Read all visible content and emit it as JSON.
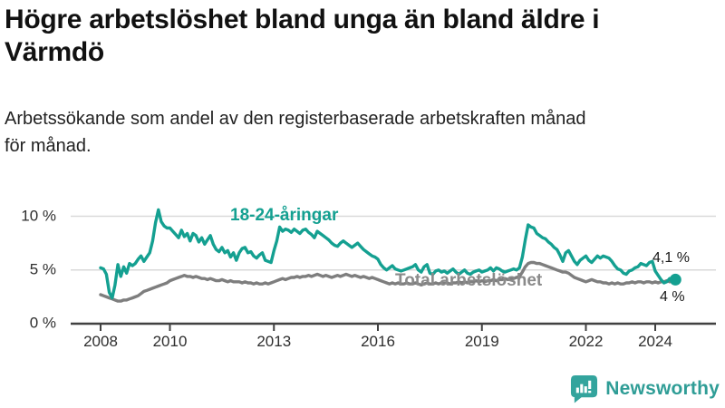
{
  "header": {
    "title_line1": "Högre arbetslöshet bland unga än bland äldre i",
    "title_line2": "Värmdö",
    "subtitle_line1": "Arbetssökande som andel av den registerbaserade arbetskraften månad",
    "subtitle_line2": "för månad."
  },
  "colors": {
    "grid": "#D9D9D9",
    "axis": "#414141",
    "youth_line": "#14A091",
    "total_line": "#7E7E7E",
    "brand": "#2F9D96"
  },
  "chart_data": {
    "type": "line",
    "title": "Högre arbetslöshet bland unga än bland äldre i Värmdö",
    "subtitle": "Arbetssökande som andel av den registerbaserade arbetskraften månad för månad.",
    "xlabel": "",
    "ylabel": "",
    "x_unit": "month",
    "x_start": "2008-01",
    "x_end": "2024-08",
    "ylim": [
      0,
      11.5
    ],
    "grid": true,
    "legend_position": "inline-annotations",
    "x_tick_labels": [
      "2008",
      "2010",
      "2013",
      "2016",
      "2019",
      "2022",
      "2024"
    ],
    "x_tick_years": [
      2008,
      2010,
      2013,
      2016,
      2019,
      2022,
      2024
    ],
    "y_tick_labels": [
      "0 %",
      "5 %",
      "10 %"
    ],
    "y_tick_values": [
      0,
      5,
      10
    ],
    "end_labels": [
      {
        "text": "4,1 %",
        "series": "18-24-åringar"
      },
      {
        "text": "4 %",
        "series": "Total arbetslöshet"
      }
    ],
    "series": [
      {
        "name": "18-24-åringar",
        "color": "#14A091",
        "end_value": 4.1,
        "values": [
          5.2,
          5.1,
          4.6,
          2.9,
          2.4,
          3.6,
          5.5,
          4.4,
          5.3,
          4.7,
          5.6,
          5.4,
          5.6,
          6.0,
          6.3,
          5.8,
          6.2,
          6.6,
          7.7,
          9.4,
          10.6,
          9.5,
          9.1,
          8.9,
          8.9,
          8.6,
          8.3,
          8.0,
          8.7,
          8.1,
          8.4,
          7.7,
          8.4,
          8.2,
          7.6,
          8.0,
          7.4,
          7.8,
          8.2,
          7.4,
          6.9,
          6.7,
          7.1,
          6.6,
          6.8,
          6.2,
          6.6,
          5.9,
          6.6,
          7.0,
          7.1,
          6.6,
          6.7,
          6.3,
          6.1,
          6.4,
          6.6,
          5.9,
          5.8,
          5.7,
          6.8,
          7.7,
          9.0,
          8.6,
          8.8,
          8.7,
          8.5,
          8.8,
          8.6,
          8.4,
          8.7,
          8.8,
          8.5,
          8.3,
          8.0,
          8.6,
          8.4,
          8.2,
          8.0,
          7.8,
          7.5,
          7.3,
          7.2,
          7.5,
          7.7,
          7.5,
          7.3,
          7.1,
          7.3,
          7.5,
          7.2,
          6.9,
          6.7,
          6.5,
          6.3,
          6.2,
          6.0,
          5.5,
          5.2,
          5.0,
          5.2,
          5.4,
          5.1,
          5.0,
          4.9,
          5.0,
          5.1,
          5.2,
          5.3,
          5.5,
          5.0,
          4.8,
          5.3,
          5.5,
          4.7,
          4.6,
          4.9,
          5.0,
          4.8,
          4.9,
          4.7,
          4.9,
          5.1,
          4.8,
          4.6,
          4.8,
          5.0,
          4.7,
          4.6,
          4.8,
          4.9,
          5.0,
          4.8,
          4.9,
          5.0,
          5.2,
          4.9,
          5.2,
          5.1,
          4.9,
          4.8,
          4.9,
          5.0,
          5.1,
          5.0,
          5.2,
          6.2,
          7.8,
          9.2,
          9.0,
          8.9,
          8.4,
          8.2,
          8.0,
          7.9,
          7.6,
          7.4,
          7.1,
          6.9,
          6.4,
          5.8,
          6.6,
          6.8,
          6.3,
          5.8,
          5.5,
          5.9,
          6.1,
          6.3,
          5.9,
          5.7,
          6.0,
          6.3,
          6.1,
          6.3,
          6.2,
          6.1,
          5.8,
          5.4,
          5.1,
          5.0,
          4.7,
          4.6,
          4.9,
          5.0,
          5.2,
          5.3,
          5.6,
          5.5,
          5.4,
          5.7,
          5.8,
          4.9,
          4.5,
          4.1,
          3.8,
          3.9,
          4.2,
          4.2,
          4.1
        ]
      },
      {
        "name": "Total arbetslöshet",
        "color": "#7E7E7E",
        "end_value": 4.0,
        "values": [
          2.7,
          2.6,
          2.5,
          2.4,
          2.3,
          2.2,
          2.1,
          2.1,
          2.2,
          2.2,
          2.3,
          2.4,
          2.5,
          2.6,
          2.8,
          3.0,
          3.1,
          3.2,
          3.3,
          3.4,
          3.5,
          3.6,
          3.7,
          3.8,
          4.0,
          4.1,
          4.2,
          4.3,
          4.4,
          4.5,
          4.4,
          4.4,
          4.3,
          4.4,
          4.3,
          4.2,
          4.2,
          4.1,
          4.2,
          4.1,
          4.0,
          4.0,
          4.1,
          4.0,
          3.9,
          4.0,
          3.9,
          3.9,
          3.9,
          3.8,
          3.9,
          3.8,
          3.8,
          3.7,
          3.8,
          3.7,
          3.7,
          3.8,
          3.7,
          3.8,
          3.9,
          4.0,
          4.1,
          4.2,
          4.1,
          4.2,
          4.3,
          4.3,
          4.4,
          4.3,
          4.4,
          4.4,
          4.5,
          4.4,
          4.5,
          4.6,
          4.5,
          4.4,
          4.5,
          4.4,
          4.3,
          4.4,
          4.5,
          4.4,
          4.5,
          4.6,
          4.5,
          4.4,
          4.5,
          4.4,
          4.3,
          4.4,
          4.3,
          4.2,
          4.3,
          4.2,
          4.1,
          4.0,
          3.9,
          3.8,
          3.7,
          3.8,
          3.7,
          3.8,
          3.7,
          3.7,
          3.8,
          3.7,
          3.7,
          3.8,
          3.7,
          3.6,
          3.7,
          3.8,
          3.7,
          3.7,
          3.8,
          3.7,
          3.8,
          3.8,
          3.8,
          3.7,
          3.8,
          3.8,
          3.9,
          3.8,
          3.9,
          3.8,
          3.9,
          3.9,
          4.0,
          3.9,
          4.0,
          3.9,
          4.0,
          4.0,
          4.1,
          4.0,
          4.1,
          4.1,
          4.2,
          4.1,
          4.2,
          4.2,
          4.3,
          4.4,
          4.8,
          5.3,
          5.6,
          5.7,
          5.7,
          5.6,
          5.6,
          5.5,
          5.4,
          5.3,
          5.2,
          5.1,
          5.0,
          4.9,
          4.8,
          4.8,
          4.7,
          4.5,
          4.3,
          4.2,
          4.1,
          4.0,
          3.9,
          4.0,
          4.1,
          4.0,
          3.9,
          3.9,
          3.8,
          3.8,
          3.7,
          3.8,
          3.7,
          3.8,
          3.7,
          3.7,
          3.8,
          3.8,
          3.9,
          3.8,
          3.9,
          3.9,
          3.8,
          3.9,
          3.9,
          3.8,
          3.9,
          3.8,
          3.9,
          3.9,
          4.0,
          3.9,
          4.0,
          4.0
        ]
      }
    ]
  },
  "footer": {
    "brand": "Newsworthy"
  }
}
